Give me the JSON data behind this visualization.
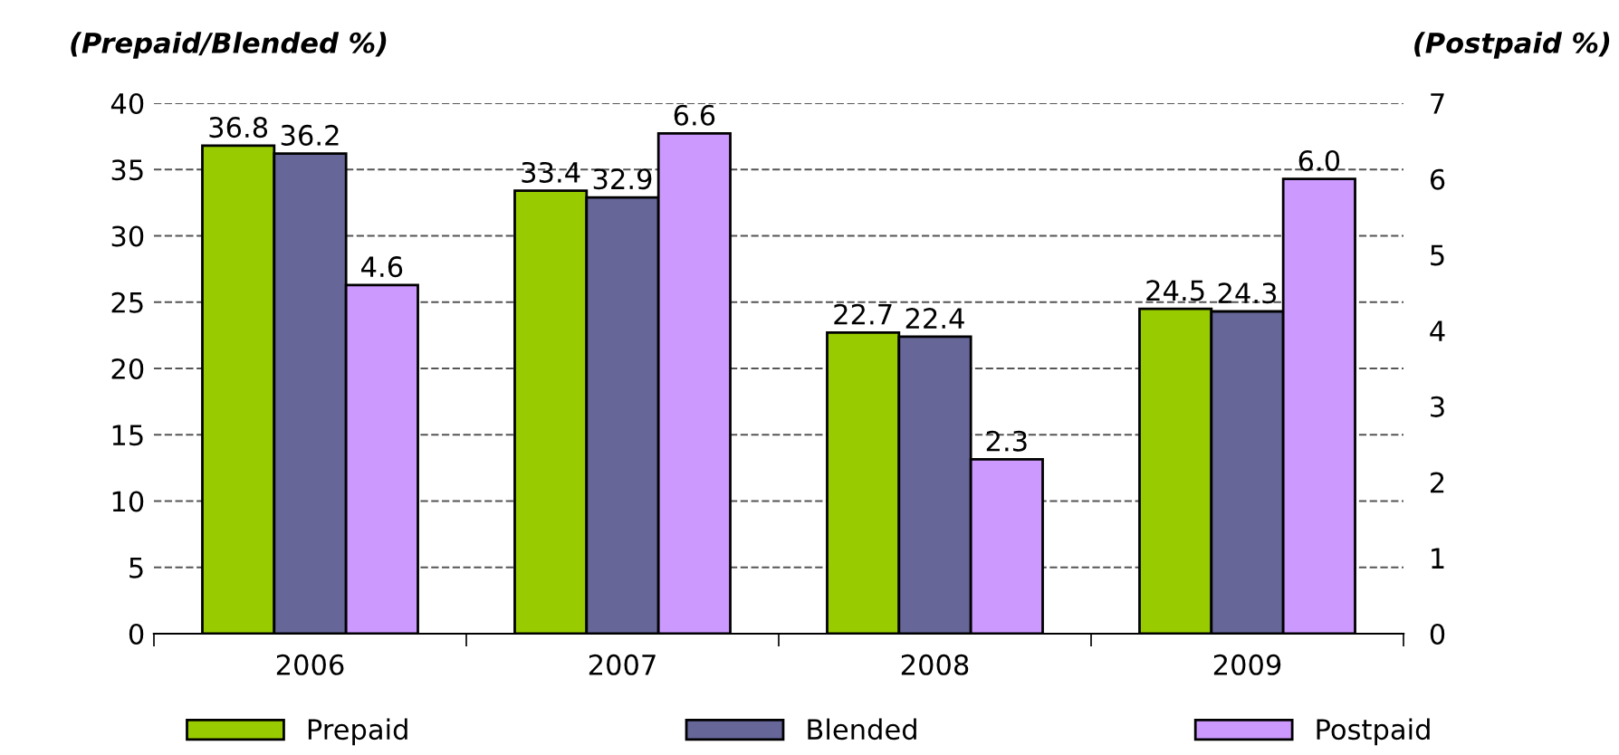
{
  "chart_data": {
    "type": "bar",
    "categories": [
      "2006",
      "2007",
      "2008",
      "2009"
    ],
    "series": [
      {
        "name": "Prepaid",
        "color": "#99cc00",
        "values": [
          36.8,
          33.4,
          22.7,
          24.5
        ]
      },
      {
        "name": "Blended",
        "color": "#666699",
        "values": [
          36.2,
          32.9,
          22.4,
          24.3
        ]
      },
      {
        "name": "Postpaid",
        "color": "#cc99ff",
        "values": [
          4.6,
          6.6,
          2.3,
          6.0
        ],
        "axis": "y2",
        "value_labels": [
          "4.6",
          "6.6",
          "2.3",
          "6.0"
        ]
      }
    ],
    "ylabel": "(Prepaid/Blended %)",
    "y2label": "(Postpaid %)",
    "ylim": [
      0,
      40
    ],
    "yticks": [
      0,
      5,
      10,
      15,
      20,
      25,
      30,
      35,
      40
    ],
    "y2lim": [
      0,
      7
    ],
    "y2ticks": [
      0,
      1,
      2,
      3,
      4,
      5,
      6,
      7
    ],
    "grid": "y",
    "legend": "bottom",
    "data_labels": true
  }
}
